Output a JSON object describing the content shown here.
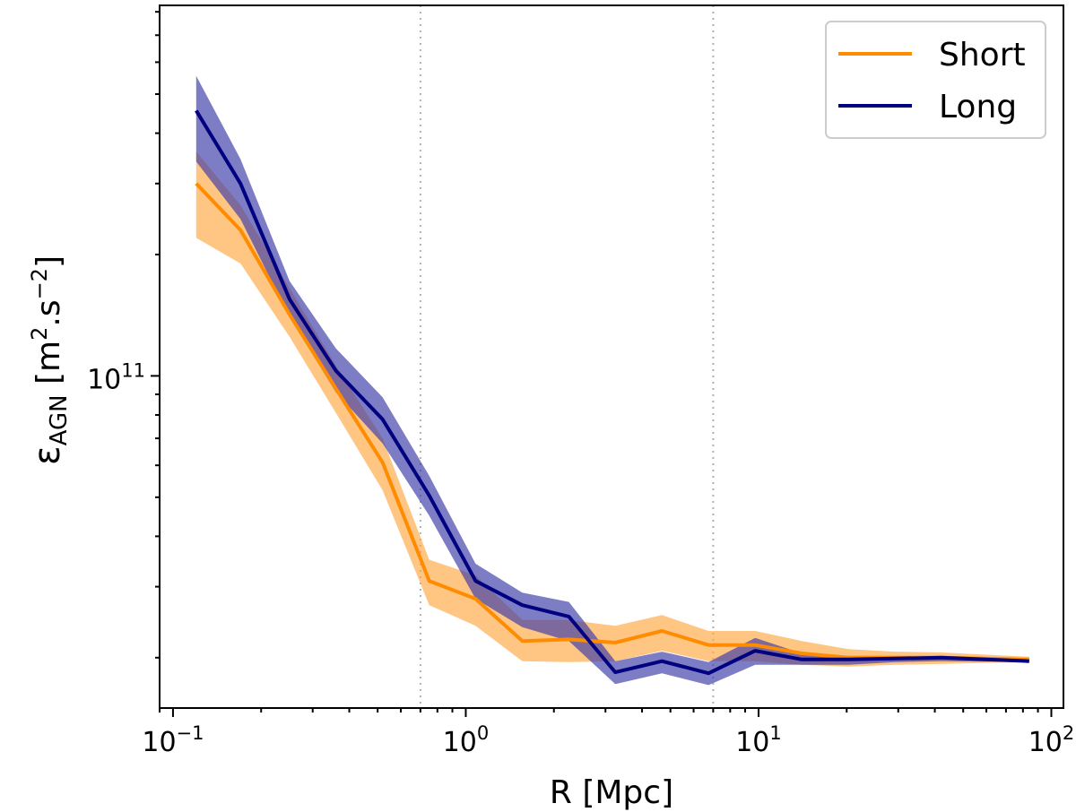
{
  "chart_data": {
    "type": "line",
    "xscale": "log",
    "yscale": "log",
    "xlim": [
      0.09,
      110
    ],
    "ylim": [
      15000000000.0,
      830000000000.0
    ],
    "xlabel": "R [Mpc]",
    "ylabel": {
      "symbol": "ε",
      "subscript": "AGN",
      "unit_open": " [m",
      "unit_exp1": "2",
      "unit_mid": ".s",
      "unit_exp2": "−2",
      "unit_close": "]"
    },
    "x_ticks": [
      {
        "value": 0.1,
        "base": "10",
        "exp": "−1"
      },
      {
        "value": 1,
        "base": "10",
        "exp": "0"
      },
      {
        "value": 10,
        "base": "10",
        "exp": "1"
      },
      {
        "value": 100,
        "base": "10",
        "exp": "2"
      }
    ],
    "y_ticks": [
      {
        "value": 100000000000.0,
        "base": "10",
        "exp": "11"
      }
    ],
    "vlines": [
      0.7,
      7.0
    ],
    "legend": {
      "position": "top-right"
    },
    "series": [
      {
        "name": "Short",
        "color": "#ff8c00",
        "band_color": "#ffa640",
        "x": [
          0.12,
          0.17,
          0.25,
          0.36,
          0.52,
          0.75,
          1.08,
          1.56,
          2.25,
          3.24,
          4.68,
          6.75,
          9.74,
          14.05,
          20.27,
          29.24,
          42.18,
          84.0
        ],
        "values": [
          300000000000.0,
          230000000000.0,
          142000000000.0,
          93000000000.0,
          61000000000.0,
          31000000000.0,
          28000000000.0,
          22000000000.0,
          22200000000.0,
          21800000000.0,
          23300000000.0,
          21500000000.0,
          21500000000.0,
          20500000000.0,
          20000000000.0,
          20000000000.0,
          20000000000.0,
          19800000000.0
        ],
        "lower": [
          220000000000.0,
          190000000000.0,
          125000000000.0,
          81000000000.0,
          52000000000.0,
          27000000000.0,
          24000000000.0,
          19600000000.0,
          19500000000.0,
          19600000000.0,
          20800000000.0,
          19600000000.0,
          19600000000.0,
          19200000000.0,
          19000000000.0,
          19200000000.0,
          19300000000.0,
          19500000000.0
        ],
        "upper": [
          360000000000.0,
          265000000000.0,
          165000000000.0,
          106000000000.0,
          70000000000.0,
          35000000000.0,
          32000000000.0,
          24800000000.0,
          24800000000.0,
          24000000000.0,
          25500000000.0,
          23300000000.0,
          23300000000.0,
          22000000000.0,
          21000000000.0,
          20700000000.0,
          20600000000.0,
          20100000000.0
        ]
      },
      {
        "name": "Long",
        "color": "#000080",
        "band_color": "#3838a8",
        "x": [
          0.12,
          0.17,
          0.25,
          0.36,
          0.52,
          0.75,
          1.08,
          1.56,
          2.25,
          3.24,
          4.68,
          6.75,
          9.74,
          14.05,
          20.27,
          29.24,
          42.18,
          84.0
        ],
        "values": [
          455000000000.0,
          300000000000.0,
          155000000000.0,
          103000000000.0,
          78000000000.0,
          50500000000.0,
          31000000000.0,
          27000000000.0,
          25300000000.0,
          18400000000.0,
          19600000000.0,
          18300000000.0,
          20800000000.0,
          19800000000.0,
          19800000000.0,
          19900000000.0,
          20000000000.0,
          19600000000.0
        ],
        "lower": [
          340000000000.0,
          245000000000.0,
          140000000000.0,
          91000000000.0,
          68000000000.0,
          45000000000.0,
          28000000000.0,
          23800000000.0,
          22000000000.0,
          17200000000.0,
          18300000000.0,
          17100000000.0,
          19200000000.0,
          19200000000.0,
          19200000000.0,
          19500000000.0,
          19600000000.0,
          19500000000.0
        ],
        "upper": [
          555000000000.0,
          345000000000.0,
          172000000000.0,
          117000000000.0,
          88500000000.0,
          56500000000.0,
          34200000000.0,
          29000000000.0,
          27500000000.0,
          19600000000.0,
          20700000000.0,
          19500000000.0,
          22400000000.0,
          20500000000.0,
          20200000000.0,
          20200000000.0,
          20200000000.0,
          19800000000.0
        ]
      }
    ]
  }
}
